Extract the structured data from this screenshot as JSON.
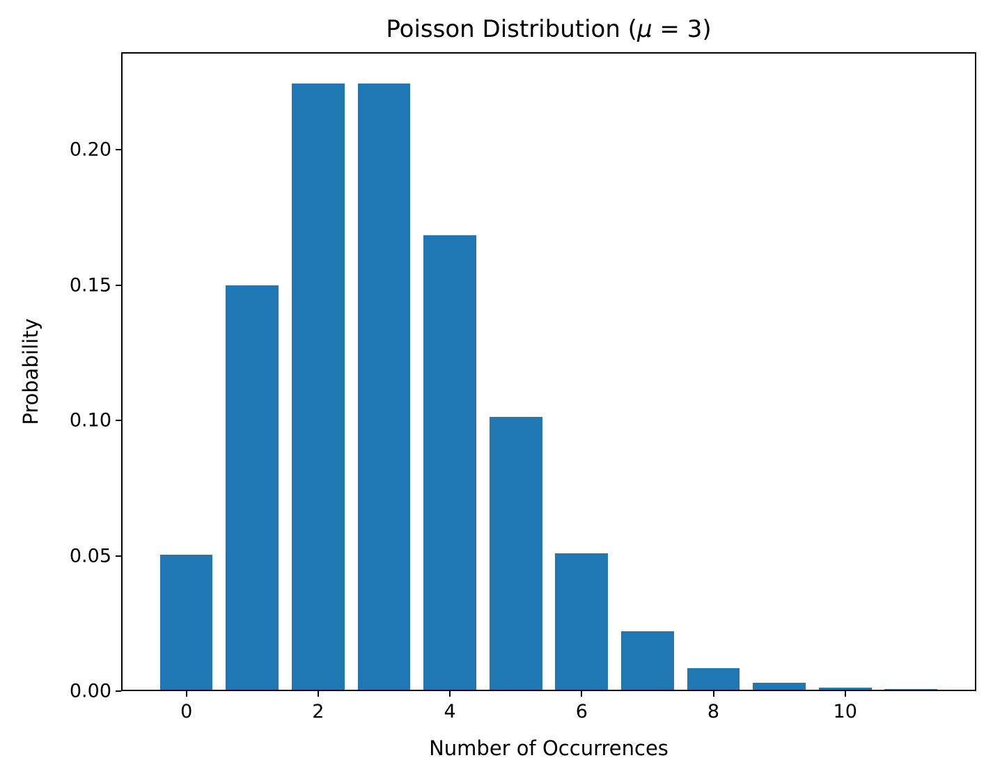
{
  "figure": {
    "background": "#ffffff",
    "title_parts": {
      "prefix": "Poisson Distribution (",
      "mu": "μ",
      "suffix": " = 3)"
    }
  },
  "chart_data": {
    "type": "bar",
    "title": "Poisson Distribution (μ = 3)",
    "xlabel": "Number of Occurrences",
    "ylabel": "Probability",
    "x": [
      0,
      1,
      2,
      3,
      4,
      5,
      6,
      7,
      8,
      9,
      10,
      11
    ],
    "values": [
      0.0498,
      0.1494,
      0.224,
      0.224,
      0.168,
      0.1008,
      0.0504,
      0.0216,
      0.0081,
      0.0027,
      0.0008,
      0.0002
    ],
    "bar_width": 0.8,
    "bar_color": "#1f77b4",
    "xtick_values": [
      0,
      2,
      4,
      6,
      8,
      10
    ],
    "xtick_labels": [
      "0",
      "2",
      "4",
      "6",
      "8",
      "10"
    ],
    "ytick_values": [
      0.0,
      0.05,
      0.1,
      0.15,
      0.2
    ],
    "ytick_labels": [
      "0.00",
      "0.05",
      "0.10",
      "0.15",
      "0.20"
    ],
    "xlim": [
      -0.99,
      11.99
    ],
    "ylim": [
      0,
      0.236
    ],
    "grid": false,
    "legend": null,
    "spine_color": "#000000",
    "text_color": "#000000"
  }
}
